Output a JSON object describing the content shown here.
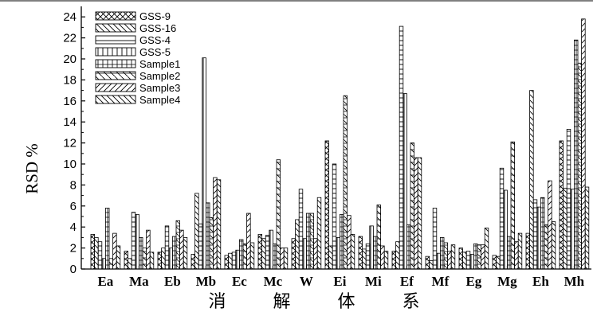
{
  "chart_data": {
    "type": "bar",
    "ylabel": "RSD %",
    "xlabel": "消 解 体 系",
    "ylim": [
      0,
      25
    ],
    "yticks": [
      0,
      2,
      4,
      6,
      8,
      10,
      12,
      14,
      16,
      18,
      20,
      22,
      24
    ],
    "legend_position": "top-left",
    "categories": [
      "Ea",
      "Ma",
      "Eb",
      "Mb",
      "Ec",
      "Mc",
      "W",
      "Ei",
      "Mi",
      "Ef",
      "Mf",
      "Eg",
      "Mg",
      "Eh",
      "Mh"
    ],
    "series": [
      {
        "name": "GSS-9",
        "hatch": "cross",
        "values": [
          3.3,
          1.7,
          1.6,
          1.4,
          1.3,
          3.3,
          2.9,
          12.2,
          3.1,
          1.7,
          1.2,
          2.0,
          1.3,
          3.4,
          12.2
        ]
      },
      {
        "name": "GSS-16",
        "hatch": "back",
        "values": [
          3.0,
          1.0,
          2.0,
          7.2,
          1.5,
          2.9,
          4.7,
          2.2,
          1.9,
          2.6,
          0.8,
          1.6,
          1.2,
          17.0,
          7.7
        ]
      },
      {
        "name": "GSS-4",
        "hatch": "horiz",
        "values": [
          2.6,
          5.4,
          4.1,
          4.3,
          1.6,
          3.2,
          7.6,
          10.0,
          2.4,
          23.1,
          5.8,
          1.7,
          9.6,
          6.6,
          13.3
        ]
      },
      {
        "name": "GSS-5",
        "hatch": "vert",
        "values": [
          1.0,
          5.2,
          2.0,
          20.1,
          1.8,
          3.7,
          2.9,
          3.0,
          4.1,
          16.7,
          1.5,
          1.4,
          7.5,
          5.9,
          7.6
        ]
      },
      {
        "name": "Sample1",
        "hatch": "grid",
        "values": [
          5.8,
          3.0,
          3.1,
          6.3,
          2.8,
          2.4,
          5.3,
          5.2,
          3.1,
          4.2,
          3.0,
          2.4,
          3.1,
          6.8,
          21.8
        ]
      },
      {
        "name": "Sample2",
        "hatch": "backcross",
        "values": [
          1.0,
          2.0,
          4.6,
          4.9,
          2.4,
          10.4,
          5.3,
          16.5,
          6.1,
          12.0,
          2.5,
          2.3,
          12.1,
          4.2,
          19.6
        ]
      },
      {
        "name": "Sample3",
        "hatch": "fwd",
        "values": [
          3.4,
          3.7,
          3.7,
          8.7,
          5.3,
          2.0,
          2.9,
          5.1,
          2.2,
          10.6,
          1.7,
          2.3,
          2.6,
          8.4,
          23.8
        ]
      },
      {
        "name": "Sample4",
        "hatch": "back",
        "values": [
          2.2,
          1.6,
          3.0,
          8.5,
          2.5,
          2.0,
          6.8,
          3.3,
          1.7,
          10.6,
          2.3,
          3.9,
          3.4,
          4.5,
          7.8
        ]
      }
    ]
  }
}
